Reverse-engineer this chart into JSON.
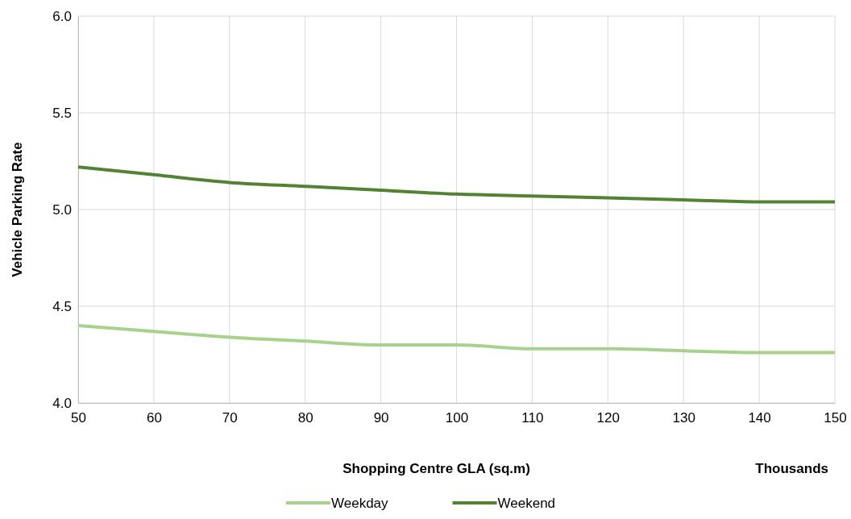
{
  "chart_data": {
    "type": "line",
    "xlabel": "Shopping Centre GLA (sq.m)",
    "ylabel": "Vehicle Parking Rate",
    "annotations": [
      "Thousands"
    ],
    "x": [
      50,
      60,
      70,
      80,
      90,
      100,
      110,
      120,
      130,
      140,
      150
    ],
    "series": [
      {
        "name": "Weekday",
        "color": "#a9d18e",
        "values": [
          4.4,
          4.37,
          4.34,
          4.32,
          4.3,
          4.3,
          4.28,
          4.28,
          4.27,
          4.26,
          4.26
        ]
      },
      {
        "name": "Weekend",
        "color": "#548235",
        "values": [
          5.22,
          5.18,
          5.14,
          5.12,
          5.1,
          5.08,
          5.07,
          5.06,
          5.05,
          5.04,
          5.04
        ]
      }
    ],
    "xlim": [
      50,
      150
    ],
    "xticks": [
      50,
      60,
      70,
      80,
      90,
      100,
      110,
      120,
      130,
      140,
      150
    ],
    "ylim": [
      4,
      6
    ],
    "yticks": [
      {
        "value": 4,
        "label": "4.0"
      },
      {
        "value": 4.5,
        "label": "4.5"
      },
      {
        "value": 5,
        "label": "5.0"
      },
      {
        "value": 5.5,
        "label": "5.5"
      },
      {
        "value": 6,
        "label": "6.0"
      }
    ],
    "grid": true,
    "legend": "bottom",
    "marker": "none",
    "line_style": "solid"
  }
}
